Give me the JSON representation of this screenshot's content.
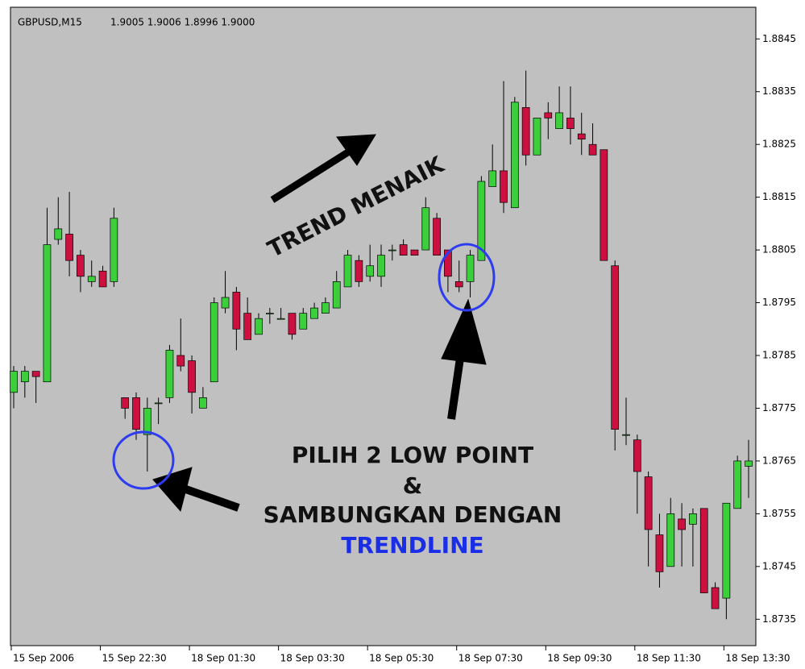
{
  "chart_data": {
    "type": "candlestick",
    "title": "GBPUSD,M15",
    "subtitle": "1.9005 1.9006 1.8996 1.9000",
    "categories": [
      "15 Sep 2006",
      null,
      null,
      null,
      null,
      null,
      null,
      null,
      "15 Sep 22:30",
      null,
      null,
      null,
      null,
      null,
      null,
      null,
      "18 Sep 01:30",
      null,
      null,
      null,
      null,
      null,
      null,
      null,
      "18 Sep 03:30",
      null,
      null,
      null,
      null,
      null,
      null,
      null,
      "18 Sep 05:30",
      null,
      null,
      null,
      null,
      null,
      null,
      null,
      "18 Sep 07:30",
      null,
      null,
      null,
      null,
      null,
      null,
      null,
      "18 Sep 09:30",
      null,
      null,
      null,
      null,
      null,
      null,
      null,
      "18 Sep 11:30",
      null,
      null,
      null,
      null,
      null,
      null,
      null,
      "18 Sep 13:30",
      null,
      null
    ],
    "open": [
      1.8778,
      1.878,
      1.8782,
      1.878,
      1.8807,
      1.8808,
      1.8804,
      1.8799,
      1.8801,
      1.8799,
      1.8777,
      1.8777,
      1.877,
      1.8776,
      1.8777,
      1.8785,
      1.8784,
      1.8775,
      1.878,
      1.8794,
      1.8797,
      1.8793,
      1.8789,
      1.8793,
      1.8792,
      1.8793,
      1.879,
      1.8792,
      1.8793,
      1.8794,
      1.8798,
      1.8803,
      1.88,
      1.88,
      1.8805,
      1.8806,
      1.8805,
      1.8805,
      1.8811,
      1.8805,
      1.8799,
      1.8799,
      1.8803,
      1.8817,
      1.882,
      1.8813,
      1.8832,
      1.8823,
      1.8831,
      1.8828,
      1.883,
      1.8827,
      1.8825,
      1.8824,
      1.8802,
      1.877,
      1.8769,
      1.8762,
      1.8751,
      1.8745,
      1.8754,
      1.8753,
      1.8756,
      1.8741,
      1.8739,
      1.8756,
      1.8764
    ],
    "high": [
      1.8783,
      1.8783,
      1.8782,
      1.8813,
      1.8815,
      1.8816,
      1.8805,
      1.8803,
      1.8802,
      1.8813,
      1.8777,
      1.8778,
      1.8777,
      1.8777,
      1.8787,
      1.8792,
      1.8785,
      1.8779,
      1.8796,
      1.8801,
      1.8798,
      1.8796,
      1.8793,
      1.8794,
      1.8794,
      1.8793,
      1.8794,
      1.8795,
      1.8796,
      1.8801,
      1.8805,
      1.8804,
      1.8806,
      1.8806,
      1.8806,
      1.8807,
      1.8805,
      1.8815,
      1.8812,
      1.8805,
      1.8803,
      1.8805,
      1.8819,
      1.8825,
      1.8837,
      1.8834,
      1.8839,
      1.883,
      1.8833,
      1.8836,
      1.8836,
      1.8831,
      1.8829,
      1.8824,
      1.8803,
      1.8777,
      1.877,
      1.8763,
      1.8755,
      1.8758,
      1.8757,
      1.8756,
      1.8756,
      1.8742,
      1.8757,
      1.8766,
      1.8769
    ],
    "low": [
      1.8775,
      1.8777,
      1.8776,
      1.878,
      1.8806,
      1.88,
      1.8797,
      1.8798,
      1.8798,
      1.8798,
      1.8773,
      1.8769,
      1.8763,
      1.8772,
      1.8776,
      1.8782,
      1.8774,
      1.8775,
      1.878,
      1.8793,
      1.8786,
      1.8788,
      1.8789,
      1.8791,
      1.8792,
      1.8788,
      1.879,
      1.8792,
      1.8793,
      1.8794,
      1.8798,
      1.8798,
      1.8799,
      1.8798,
      1.8803,
      1.8804,
      1.8804,
      1.8805,
      1.8804,
      1.8797,
      1.8797,
      1.8796,
      1.8803,
      1.8817,
      1.8812,
      1.8813,
      1.8821,
      1.8823,
      1.8826,
      1.8828,
      1.8825,
      1.8823,
      1.8823,
      1.8803,
      1.8767,
      1.8768,
      1.8755,
      1.8745,
      1.8741,
      1.8745,
      1.8745,
      1.8745,
      1.874,
      1.8737,
      1.8735,
      1.8756,
      1.8758
    ],
    "close": [
      1.8782,
      1.8782,
      1.8781,
      1.8806,
      1.8809,
      1.8803,
      1.88,
      1.88,
      1.8798,
      1.8811,
      1.8775,
      1.8771,
      1.8775,
      1.8776,
      1.8786,
      1.8783,
      1.8778,
      1.8777,
      1.8795,
      1.8796,
      1.879,
      1.8788,
      1.8792,
      1.8793,
      1.8792,
      1.8789,
      1.8793,
      1.8794,
      1.8795,
      1.8799,
      1.8804,
      1.8799,
      1.8802,
      1.8804,
      1.8805,
      1.8804,
      1.8804,
      1.8813,
      1.8804,
      1.88,
      1.8798,
      1.8804,
      1.8818,
      1.882,
      1.8814,
      1.8833,
      1.8823,
      1.883,
      1.883,
      1.8831,
      1.8828,
      1.8826,
      1.8823,
      1.8803,
      1.8771,
      1.877,
      1.8763,
      1.8752,
      1.8744,
      1.8755,
      1.8752,
      1.8755,
      1.874,
      1.8737,
      1.8757,
      1.8765,
      1.8765
    ],
    "up_color": "#3ccf3c",
    "down_color": "#cc1040",
    "ylim": [
      1.873,
      1.8851
    ],
    "yticks": [
      1.8735,
      1.8745,
      1.8755,
      1.8765,
      1.8775,
      1.8785,
      1.8795,
      1.8805,
      1.8815,
      1.8825,
      1.8835,
      1.8845
    ],
    "annotations": [
      "TREND MENAIK",
      "PILIH 2 LOW POINT",
      "&",
      "SAMBUNGKAN DENGAN",
      "TRENDLINE"
    ]
  }
}
